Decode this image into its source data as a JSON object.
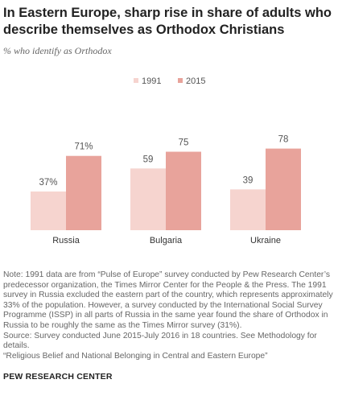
{
  "title": "In Eastern Europe, sharp rise in share of adults who describe themselves as Orthodox Christians",
  "subtitle": "% who identify as Orthodox",
  "colors": {
    "series_1991": "#f6d4cf",
    "series_2015": "#e8a39b",
    "label_text": "#555555"
  },
  "chart_data": {
    "type": "bar",
    "categories": [
      "Russia",
      "Bulgaria",
      "Ukraine"
    ],
    "series": [
      {
        "name": "1991",
        "values": [
          37,
          59,
          39
        ],
        "labels": [
          "37%",
          "59",
          "39"
        ]
      },
      {
        "name": "2015",
        "values": [
          71,
          75,
          78
        ],
        "labels": [
          "71%",
          "75",
          "78"
        ]
      }
    ],
    "ylim": [
      0,
      100
    ]
  },
  "notes": {
    "note": "Note: 1991 data are from “Pulse of Europe” survey conducted by Pew Research Center’s predecessor organization, the Times Mirror Center for the People & the Press. The 1991 survey in Russia excluded the eastern part of the country, which represents approximately 33% of the population. However, a survey conducted by the International Social Survey Programme (ISSP) in all parts of Russia in the same year found the share of Orthodox in Russia to be roughly the same as the Times Mirror survey (31%).",
    "source": "Source: Survey conducted June 2015-July 2016 in 18 countries. See Methodology for details.",
    "report": "“Religious Belief and National Belonging in Central and Eastern Europe”"
  },
  "brand": "PEW RESEARCH CENTER"
}
